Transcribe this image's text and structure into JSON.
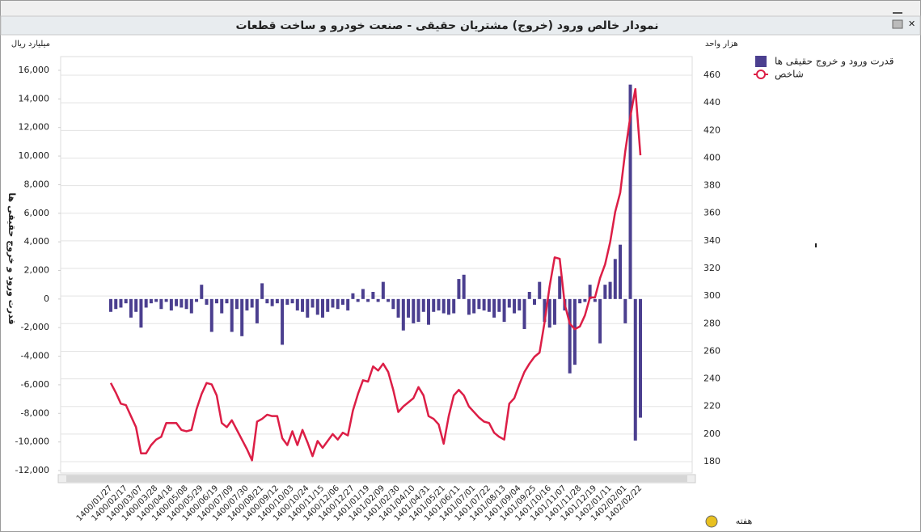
{
  "chart_data": {
    "type": "combo",
    "title": "نمودار خالص ورود (خروج) مشتریان حقیقی - صنعت خودرو و ساخت قطعات",
    "y_unit": "میلیارد ریال",
    "y2_unit": "هزار واحد",
    "ylabel": "قدرت ورود و خروج حقیقی ها",
    "xlabel": "هفته",
    "categories": [
      "1400/01/27",
      null,
      null,
      "1400/02/17",
      null,
      null,
      "1400/03/07",
      null,
      null,
      "1400/03/28",
      null,
      null,
      "1400/04/18",
      null,
      null,
      "1400/05/08",
      null,
      null,
      "1400/05/29",
      null,
      null,
      "1400/06/19",
      null,
      null,
      "1400/07/09",
      null,
      null,
      "1400/07/30",
      null,
      null,
      "1400/08/21",
      null,
      null,
      "1400/09/12",
      null,
      null,
      "1400/10/03",
      null,
      null,
      "1400/10/24",
      null,
      null,
      "1400/11/15",
      null,
      null,
      "1400/12/06",
      null,
      null,
      "1400/12/27",
      null,
      null,
      "1401/01/19",
      null,
      null,
      "1401/02/09",
      null,
      null,
      "1401/02/30",
      null,
      null,
      "1401/04/10",
      null,
      null,
      "1401/04/31",
      null,
      null,
      "1401/05/21",
      null,
      null,
      "1401/06/11",
      null,
      null,
      "1401/07/01",
      null,
      null,
      "1401/07/22",
      null,
      null,
      "1401/08/13",
      null,
      null,
      "1401/09/04",
      null,
      null,
      "1401/09/25",
      null,
      null,
      "1401/10/16",
      null,
      null,
      "1401/11/07",
      null,
      null,
      "1401/11/28",
      null,
      null,
      "1401/12/19",
      null,
      null,
      "1402/01/11",
      null,
      null,
      "1402/02/01",
      null,
      null,
      "1402/02/22"
    ],
    "series": [
      {
        "name": "قدرت ورود و خروج حقیقی ها",
        "type": "bar",
        "color": "#4b3f8f",
        "values": [
          -900,
          -700,
          -600,
          -300,
          -1300,
          -900,
          -2000,
          -600,
          -300,
          -200,
          -700,
          -200,
          -800,
          -500,
          -600,
          -700,
          -1000,
          -200,
          1000,
          -400,
          -2300,
          -300,
          -1000,
          -300,
          -2300,
          -700,
          -2600,
          -800,
          -600,
          -1700,
          1100,
          -300,
          -500,
          -300,
          -3200,
          -400,
          -300,
          -800,
          -900,
          -1300,
          -600,
          -1100,
          -1300,
          -900,
          -600,
          -700,
          -400,
          -800,
          400,
          -200,
          700,
          -200,
          500,
          -200,
          1200,
          -200,
          -700,
          -1300,
          -2200,
          -1300,
          -1700,
          -1600,
          -900,
          -1800,
          -900,
          -800,
          -1000,
          -1100,
          -1000,
          1400,
          1700,
          -1100,
          -1000,
          -700,
          -800,
          -900,
          -1300,
          -900,
          -1600,
          -600,
          -1000,
          -800,
          -2100,
          500,
          -400,
          1200,
          -1600,
          -2000,
          -1800,
          1600,
          -800,
          -5200,
          -4600,
          -300,
          -200,
          1000,
          -200,
          -3100,
          1000,
          1200,
          2800,
          3800,
          -1700,
          15000,
          -9900,
          -8300
        ]
      },
      {
        "name": "شاخص",
        "type": "line",
        "axis": "y2",
        "color": "#dc1e46",
        "values": [
          237,
          230,
          222,
          221,
          213,
          205,
          186,
          186,
          192,
          196,
          198,
          208,
          208,
          208,
          203,
          202,
          203,
          218,
          229,
          237,
          236,
          228,
          208,
          205,
          210,
          203,
          196,
          189,
          181,
          209,
          211,
          214,
          213,
          213,
          197,
          192,
          202,
          192,
          203,
          194,
          184,
          195,
          190,
          195,
          200,
          196,
          201,
          199,
          217,
          229,
          239,
          238,
          249,
          246,
          251,
          245,
          232,
          216,
          220,
          223,
          226,
          234,
          228,
          213,
          211,
          207,
          193,
          213,
          228,
          232,
          228,
          220,
          216,
          212,
          209,
          208,
          201,
          198,
          196,
          222,
          226,
          236,
          245,
          251,
          256,
          259,
          281,
          307,
          328,
          327,
          294,
          280,
          276,
          278,
          286,
          299,
          299,
          313,
          323,
          339,
          361,
          375,
          405,
          430,
          450,
          402
        ]
      }
    ],
    "ylim": [
      -12170,
      16960
    ],
    "yticks": [
      {
        "value": -12000,
        "label": "-12,000"
      },
      {
        "value": -10000,
        "label": "-10,000"
      },
      {
        "value": -8000,
        "label": "-8,000"
      },
      {
        "value": -6000,
        "label": "-6,000"
      },
      {
        "value": -4000,
        "label": "-4,000"
      },
      {
        "value": -2000,
        "label": "-2,000"
      },
      0,
      {
        "value": 2000,
        "label": "2,000"
      },
      {
        "value": 4000,
        "label": "4,000"
      },
      {
        "value": 6000,
        "label": "6,000"
      },
      {
        "value": 8000,
        "label": "8,000"
      },
      {
        "value": 10000,
        "label": "10,000"
      },
      {
        "value": 12000,
        "label": "12,000"
      },
      {
        "value": 14000,
        "label": "14,000"
      },
      {
        "value": 16000,
        "label": "16,000"
      }
    ],
    "y2lim": [
      171.8,
      473.5
    ],
    "y2ticks": [
      180,
      200,
      220,
      240,
      260,
      280,
      300,
      320,
      340,
      360,
      380,
      400,
      420,
      440,
      460
    ],
    "grid": true,
    "legend": "top-right"
  }
}
